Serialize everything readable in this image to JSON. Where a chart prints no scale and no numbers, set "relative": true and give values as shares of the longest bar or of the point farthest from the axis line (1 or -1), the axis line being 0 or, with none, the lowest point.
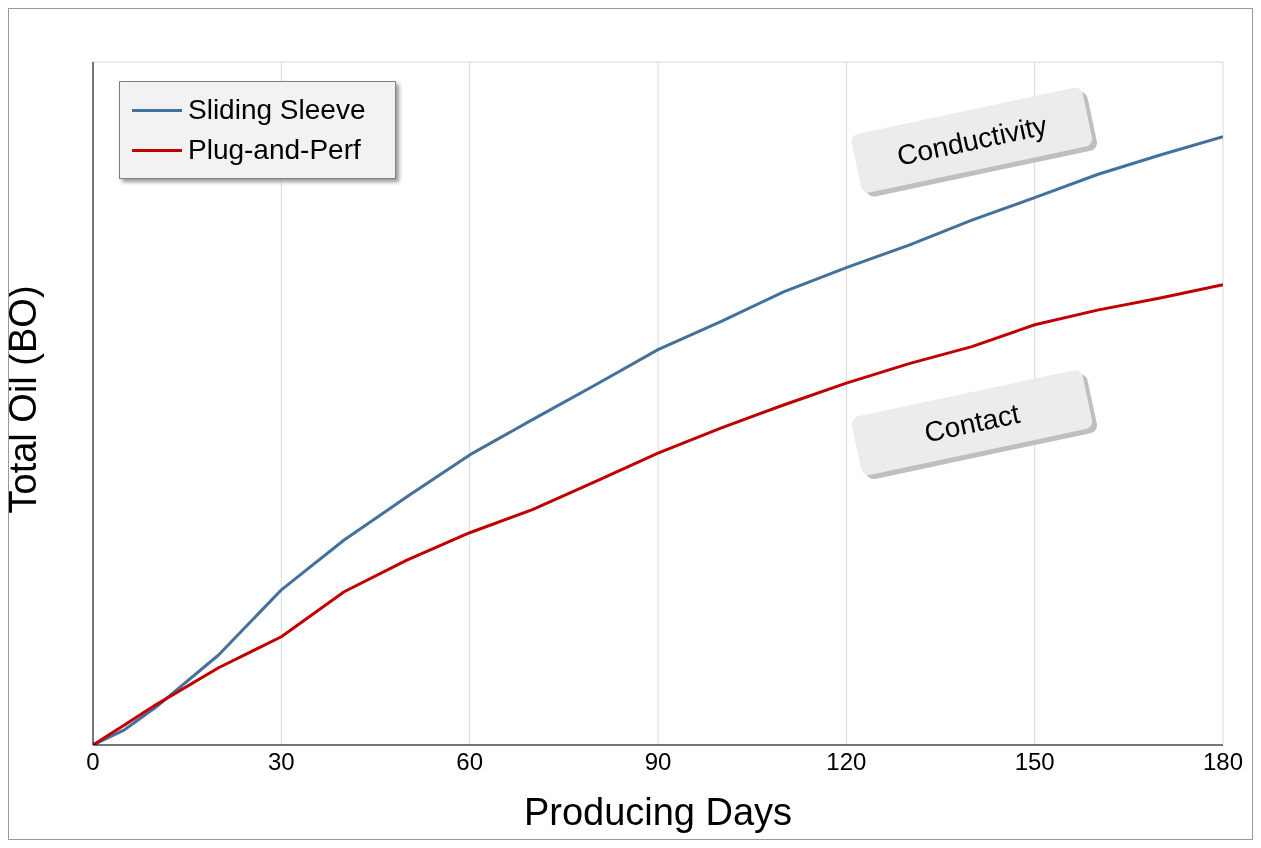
{
  "chart_data": {
    "type": "line",
    "xlabel": "Producing Days",
    "ylabel": "Total Oil (BO)",
    "relative": true,
    "grid": true,
    "legend": "top left",
    "line_style": "solid",
    "marker": "none",
    "x": [
      0,
      5,
      10,
      20,
      30,
      40,
      50,
      60,
      70,
      80,
      90,
      100,
      110,
      120,
      130,
      140,
      150,
      160,
      170,
      180
    ],
    "xlim": [
      0,
      180
    ],
    "xticks": [
      0,
      30,
      60,
      90,
      120,
      150,
      180
    ],
    "series": [
      {
        "name": "Sliding Sleeve",
        "color": "#41719c",
        "values": [
          0,
          0.025,
          0.062,
          0.148,
          0.255,
          0.337,
          0.408,
          0.477,
          0.535,
          0.592,
          0.65,
          0.696,
          0.745,
          0.785,
          0.822,
          0.863,
          0.9,
          0.938,
          0.97,
          1
        ]
      },
      {
        "name": "Plug-and-Perf",
        "color": "#c00000",
        "values": [
          0,
          0.033,
          0.066,
          0.127,
          0.178,
          0.252,
          0.304,
          0.349,
          0.387,
          0.433,
          0.48,
          0.521,
          0.559,
          0.595,
          0.627,
          0.655,
          0.691,
          0.715,
          0.735,
          0.757
        ]
      }
    ],
    "annotations": [
      "Conductivity",
      "Contact"
    ]
  }
}
